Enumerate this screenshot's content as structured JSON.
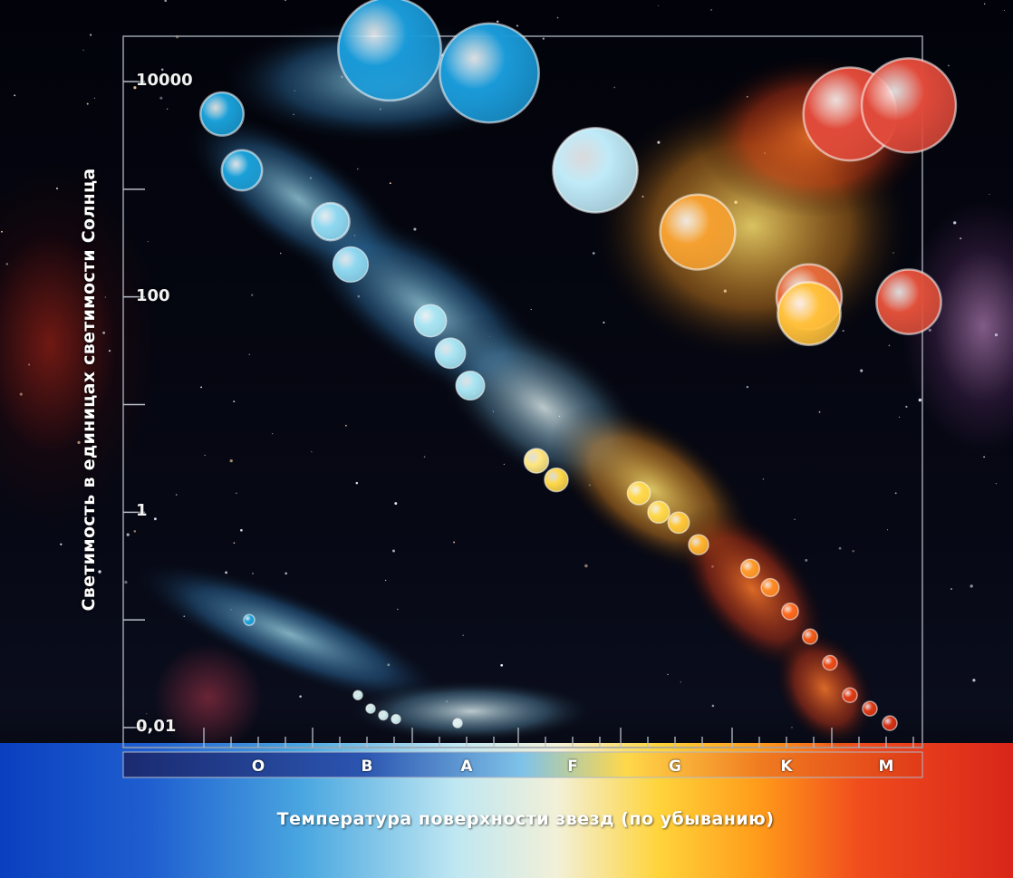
{
  "chart_data": {
    "type": "scatter",
    "title": "",
    "ylabel": "Светимость в единицах светимости Солнца",
    "xlabel": "Температура поверхности звезд (по убыванию)",
    "y_scale": "log",
    "y_ticks": [
      "10000",
      "100",
      "1",
      "0,01"
    ],
    "y_tick_values": [
      10000,
      100,
      1,
      0.01
    ],
    "x_categories": [
      "O",
      "B",
      "A",
      "F",
      "G",
      "K",
      "M"
    ],
    "grid": false,
    "series": [
      {
        "group": "main-sequence",
        "points": [
          {
            "x": "O",
            "y": 5000,
            "color": "#1aa0d8"
          },
          {
            "x": "O",
            "y": 1500,
            "color": "#1aa0d8"
          },
          {
            "x": "B",
            "y": 500,
            "color": "#8fd8f0"
          },
          {
            "x": "B",
            "y": 200,
            "color": "#8fd8f0"
          },
          {
            "x": "A",
            "y": 60,
            "color": "#a8e4f2"
          },
          {
            "x": "A",
            "y": 30,
            "color": "#a8e4f2"
          },
          {
            "x": "A",
            "y": 15,
            "color": "#a8e4f2"
          },
          {
            "x": "F",
            "y": 3,
            "color": "#ffe680"
          },
          {
            "x": "F",
            "y": 2,
            "color": "#ffd84a"
          },
          {
            "x": "G",
            "y": 1.5,
            "color": "#ffd84a"
          },
          {
            "x": "G",
            "y": 1,
            "color": "#ffd84a"
          },
          {
            "x": "G",
            "y": 0.8,
            "color": "#ffc83a"
          },
          {
            "x": "G",
            "y": 0.5,
            "color": "#ffb430"
          },
          {
            "x": "K",
            "y": 0.3,
            "color": "#ff9a2a"
          },
          {
            "x": "K",
            "y": 0.2,
            "color": "#ff8a24"
          },
          {
            "x": "K",
            "y": 0.12,
            "color": "#ff6a1c"
          },
          {
            "x": "K",
            "y": 0.07,
            "color": "#f55a18"
          },
          {
            "x": "K",
            "y": 0.04,
            "color": "#ee4a16"
          },
          {
            "x": "M",
            "y": 0.02,
            "color": "#e03a14"
          },
          {
            "x": "M",
            "y": 0.015,
            "color": "#e03a14"
          },
          {
            "x": "M",
            "y": 0.011,
            "color": "#d83214"
          }
        ]
      },
      {
        "group": "giants",
        "points": [
          {
            "x": "B",
            "y": 20000,
            "color": "#1a9ad8"
          },
          {
            "x": "A",
            "y": 12000,
            "color": "#1a9ad8"
          },
          {
            "x": "F",
            "y": 1500,
            "color": "#bfeaf8"
          },
          {
            "x": "G",
            "y": 400,
            "color": "#f5a030"
          },
          {
            "x": "K",
            "y": 100,
            "color": "#e56a3a"
          },
          {
            "x": "K",
            "y": 70,
            "color": "#ffc03a"
          },
          {
            "x": "M",
            "y": 90,
            "color": "#e0503a"
          },
          {
            "x": "K",
            "y": 5000,
            "color": "#e04a3a"
          },
          {
            "x": "M",
            "y": 6000,
            "color": "#e04a3a"
          }
        ]
      },
      {
        "group": "white-dwarfs",
        "points": [
          {
            "x": "O",
            "y": 0.1,
            "color": "#1aa0d8"
          },
          {
            "x": "B",
            "y": 0.02,
            "color": "#cfeff0"
          },
          {
            "x": "B",
            "y": 0.015,
            "color": "#cfeff0"
          },
          {
            "x": "B",
            "y": 0.013,
            "color": "#cfeff0"
          },
          {
            "x": "B",
            "y": 0.012,
            "color": "#cfeff0"
          },
          {
            "x": "A",
            "y": 0.011,
            "color": "#dff4f4"
          }
        ]
      }
    ]
  }
}
